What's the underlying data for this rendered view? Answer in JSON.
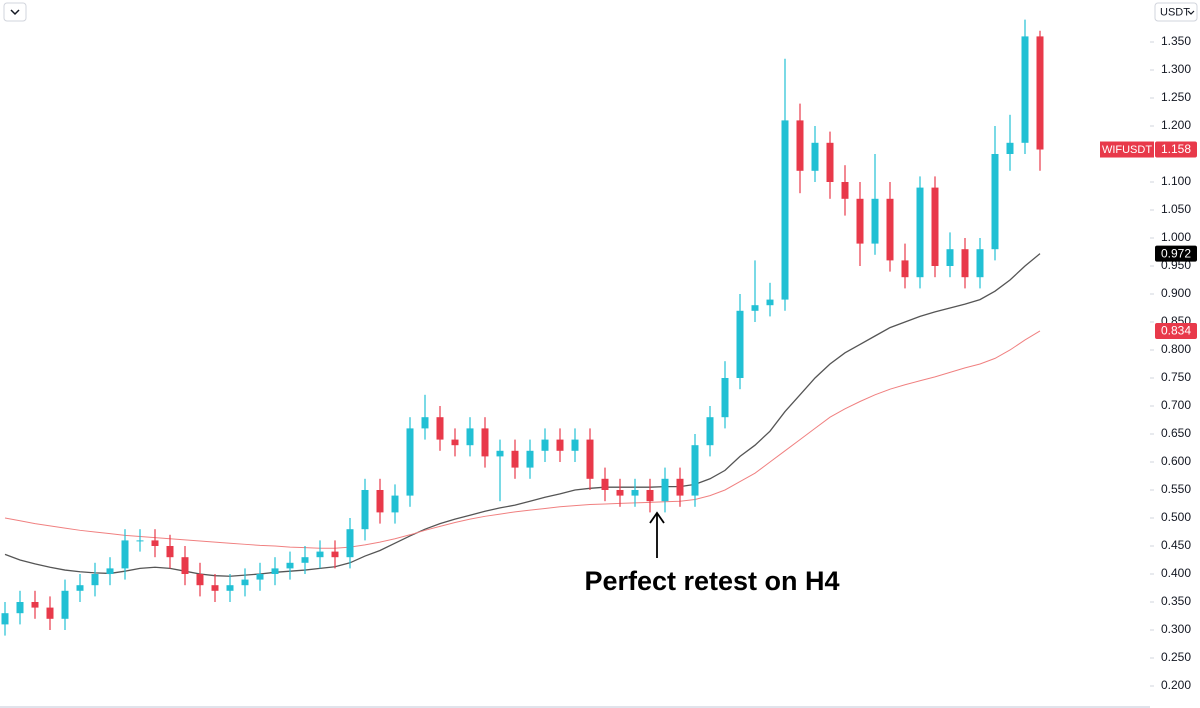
{
  "chart_data": {
    "type": "candlestick",
    "currency": "USDT",
    "annotation": "Perfect retest on H4",
    "up_color": "#22c0d4",
    "down_color": "#e8394a",
    "ylim": [
      0.1607,
      1.425
    ],
    "yticks": [
      {
        "value": 0.2,
        "label": "0.200"
      },
      {
        "value": 0.25,
        "label": "0.250"
      },
      {
        "value": 0.3,
        "label": "0.300"
      },
      {
        "value": 0.35,
        "label": "0.350"
      },
      {
        "value": 0.4,
        "label": "0.400"
      },
      {
        "value": 0.45,
        "label": "0.450"
      },
      {
        "value": 0.5,
        "label": "0.500"
      },
      {
        "value": 0.55,
        "label": "0.550"
      },
      {
        "value": 0.6,
        "label": "0.600"
      },
      {
        "value": 0.65,
        "label": "0.650"
      },
      {
        "value": 0.7,
        "label": "0.700"
      },
      {
        "value": 0.75,
        "label": "0.750"
      },
      {
        "value": 0.8,
        "label": "0.800"
      },
      {
        "value": 0.85,
        "label": "0.850"
      },
      {
        "value": 0.9,
        "label": "0.900"
      },
      {
        "value": 0.95,
        "label": "0.950"
      },
      {
        "value": 1.0,
        "label": "1.000"
      },
      {
        "value": 1.05,
        "label": "1.050"
      },
      {
        "value": 1.1,
        "label": "1.100"
      },
      {
        "value": 1.15,
        "label": "1.150"
      },
      {
        "value": 1.2,
        "label": "1.200"
      },
      {
        "value": 1.25,
        "label": "1.250"
      },
      {
        "value": 1.3,
        "label": "1.300"
      },
      {
        "value": 1.35,
        "label": "1.350"
      }
    ],
    "open": [
      0.31,
      0.33,
      0.35,
      0.34,
      0.32,
      0.37,
      0.38,
      0.4,
      0.41,
      0.46,
      0.46,
      0.45,
      0.43,
      0.4,
      0.38,
      0.37,
      0.38,
      0.39,
      0.4,
      0.41,
      0.42,
      0.43,
      0.44,
      0.43,
      0.48,
      0.55,
      0.51,
      0.54,
      0.66,
      0.68,
      0.64,
      0.63,
      0.66,
      0.61,
      0.62,
      0.59,
      0.62,
      0.64,
      0.62,
      0.64,
      0.57,
      0.55,
      0.54,
      0.55,
      0.53,
      0.57,
      0.54,
      0.63,
      0.68,
      0.75,
      0.87,
      0.88,
      0.89,
      1.21,
      1.12,
      1.17,
      1.1,
      1.07,
      0.99,
      1.07,
      0.96,
      0.93,
      1.09,
      0.95,
      0.98,
      0.93,
      0.98,
      1.15,
      1.17,
      1.36
    ],
    "high": [
      0.35,
      0.37,
      0.37,
      0.36,
      0.39,
      0.4,
      0.42,
      0.43,
      0.48,
      0.48,
      0.48,
      0.47,
      0.45,
      0.42,
      0.4,
      0.4,
      0.41,
      0.42,
      0.43,
      0.44,
      0.45,
      0.46,
      0.46,
      0.5,
      0.57,
      0.57,
      0.56,
      0.68,
      0.72,
      0.7,
      0.66,
      0.68,
      0.68,
      0.64,
      0.64,
      0.64,
      0.66,
      0.66,
      0.66,
      0.66,
      0.59,
      0.57,
      0.57,
      0.57,
      0.59,
      0.59,
      0.65,
      0.7,
      0.78,
      0.9,
      0.96,
      0.92,
      1.32,
      1.24,
      1.2,
      1.19,
      1.13,
      1.1,
      1.15,
      1.1,
      0.99,
      1.11,
      1.11,
      1.01,
      1.0,
      1.0,
      1.2,
      1.22,
      1.39,
      1.37
    ],
    "low": [
      0.29,
      0.31,
      0.32,
      0.3,
      0.3,
      0.35,
      0.36,
      0.38,
      0.39,
      0.44,
      0.43,
      0.41,
      0.38,
      0.36,
      0.35,
      0.35,
      0.36,
      0.37,
      0.38,
      0.39,
      0.4,
      0.41,
      0.41,
      0.41,
      0.46,
      0.49,
      0.49,
      0.52,
      0.64,
      0.62,
      0.61,
      0.61,
      0.59,
      0.53,
      0.57,
      0.57,
      0.6,
      0.6,
      0.6,
      0.55,
      0.53,
      0.52,
      0.52,
      0.51,
      0.51,
      0.52,
      0.52,
      0.61,
      0.66,
      0.73,
      0.85,
      0.86,
      0.87,
      1.08,
      1.1,
      1.07,
      1.04,
      0.95,
      0.97,
      0.94,
      0.91,
      0.91,
      0.93,
      0.93,
      0.91,
      0.91,
      0.96,
      1.12,
      1.15,
      1.12
    ],
    "close": [
      0.33,
      0.35,
      0.34,
      0.32,
      0.37,
      0.38,
      0.4,
      0.41,
      0.46,
      0.46,
      0.45,
      0.43,
      0.4,
      0.38,
      0.37,
      0.38,
      0.39,
      0.4,
      0.41,
      0.42,
      0.43,
      0.44,
      0.43,
      0.48,
      0.55,
      0.51,
      0.54,
      0.66,
      0.68,
      0.64,
      0.63,
      0.66,
      0.61,
      0.62,
      0.59,
      0.62,
      0.64,
      0.62,
      0.64,
      0.57,
      0.55,
      0.54,
      0.55,
      0.53,
      0.57,
      0.54,
      0.63,
      0.68,
      0.75,
      0.87,
      0.88,
      0.89,
      1.21,
      1.12,
      1.17,
      1.1,
      1.07,
      0.99,
      1.07,
      0.96,
      0.93,
      1.09,
      0.95,
      0.98,
      0.93,
      0.98,
      1.15,
      1.17,
      1.36,
      1.158
    ],
    "series": [
      {
        "color": "#555555",
        "values": [
          0.435,
          0.425,
          0.418,
          0.412,
          0.407,
          0.404,
          0.402,
          0.401,
          0.405,
          0.41,
          0.412,
          0.41,
          0.405,
          0.4,
          0.397,
          0.396,
          0.398,
          0.4,
          0.403,
          0.405,
          0.407,
          0.41,
          0.413,
          0.42,
          0.432,
          0.442,
          0.455,
          0.468,
          0.48,
          0.49,
          0.498,
          0.505,
          0.512,
          0.518,
          0.523,
          0.53,
          0.537,
          0.543,
          0.55,
          0.553,
          0.555,
          0.555,
          0.555,
          0.555,
          0.556,
          0.556,
          0.56,
          0.57,
          0.585,
          0.61,
          0.63,
          0.655,
          0.69,
          0.72,
          0.75,
          0.775,
          0.795,
          0.81,
          0.825,
          0.84,
          0.85,
          0.86,
          0.868,
          0.875,
          0.882,
          0.89,
          0.905,
          0.925,
          0.95,
          0.972
        ]
      },
      {
        "color": "#f08080",
        "values": [
          0.5,
          0.495,
          0.49,
          0.486,
          0.482,
          0.478,
          0.475,
          0.472,
          0.469,
          0.467,
          0.465,
          0.463,
          0.461,
          0.459,
          0.457,
          0.455,
          0.453,
          0.451,
          0.45,
          0.448,
          0.447,
          0.446,
          0.446,
          0.448,
          0.452,
          0.457,
          0.463,
          0.47,
          0.478,
          0.485,
          0.492,
          0.498,
          0.503,
          0.507,
          0.511,
          0.514,
          0.517,
          0.52,
          0.522,
          0.524,
          0.525,
          0.526,
          0.527,
          0.528,
          0.529,
          0.53,
          0.533,
          0.54,
          0.55,
          0.565,
          0.58,
          0.6,
          0.62,
          0.64,
          0.66,
          0.68,
          0.695,
          0.708,
          0.72,
          0.73,
          0.738,
          0.745,
          0.752,
          0.76,
          0.768,
          0.775,
          0.785,
          0.8,
          0.818,
          0.834
        ]
      }
    ],
    "price_badges": [
      {
        "name": "WIFUSDT",
        "value": 1.158,
        "color": "#e8394a"
      },
      {
        "value": 0.972,
        "color": "#000000"
      },
      {
        "value": 0.834,
        "color": "#e8394a"
      }
    ]
  }
}
